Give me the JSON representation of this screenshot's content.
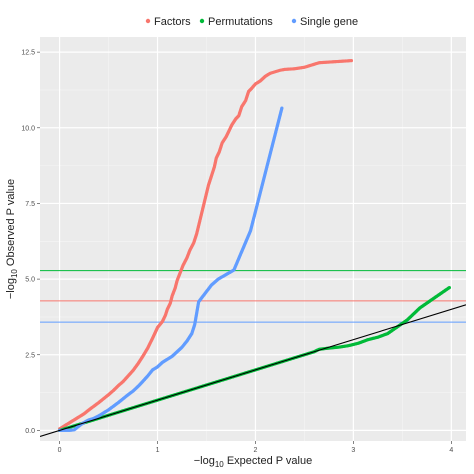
{
  "chart_data": {
    "type": "scatter",
    "title": "",
    "xlabel": "−log10 Expected P value",
    "ylabel": "−log10 Observed P value",
    "xlabel_parts": {
      "pre": "−log",
      "sub": "10",
      "post": " Expected P value"
    },
    "ylabel_parts": {
      "pre": "−log",
      "sub": "10",
      "post": " Observed P value"
    },
    "xlim": [
      -0.2,
      4.15
    ],
    "ylim": [
      -0.35,
      13.0
    ],
    "xticks": [
      0,
      1,
      2,
      3,
      4
    ],
    "xtick_labels": [
      "0",
      "1",
      "2",
      "3",
      "4"
    ],
    "yticks": [
      0.0,
      2.5,
      5.0,
      7.5,
      10.0,
      12.5
    ],
    "ytick_labels": [
      "0.0",
      "2.5",
      "5.0",
      "7.5",
      "10.0",
      "12.5"
    ],
    "grid": true,
    "legend_position": "top",
    "background": "#ebebeb",
    "reference_line": {
      "slope": 1.0,
      "color": "#000000"
    },
    "thresholds": [
      {
        "series": "Permutations",
        "y": 5.28,
        "color": "#00ba38"
      },
      {
        "series": "Factors",
        "y": 4.28,
        "color": "#f8766d"
      },
      {
        "series": "Single gene",
        "y": 3.58,
        "color": "#619cff"
      }
    ],
    "series": [
      {
        "name": "Factors",
        "color": "#f8766d",
        "points": [
          [
            0.0,
            0.05
          ],
          [
            0.05,
            0.15
          ],
          [
            0.1,
            0.25
          ],
          [
            0.15,
            0.35
          ],
          [
            0.2,
            0.45
          ],
          [
            0.25,
            0.55
          ],
          [
            0.3,
            0.68
          ],
          [
            0.35,
            0.8
          ],
          [
            0.4,
            0.92
          ],
          [
            0.45,
            1.05
          ],
          [
            0.5,
            1.18
          ],
          [
            0.55,
            1.32
          ],
          [
            0.6,
            1.48
          ],
          [
            0.65,
            1.62
          ],
          [
            0.7,
            1.8
          ],
          [
            0.75,
            1.98
          ],
          [
            0.8,
            2.2
          ],
          [
            0.85,
            2.45
          ],
          [
            0.9,
            2.72
          ],
          [
            0.95,
            3.05
          ],
          [
            1.0,
            3.4
          ],
          [
            1.05,
            3.6
          ],
          [
            1.08,
            3.8
          ],
          [
            1.1,
            4.0
          ],
          [
            1.13,
            4.2
          ],
          [
            1.15,
            4.45
          ],
          [
            1.18,
            4.7
          ],
          [
            1.2,
            4.95
          ],
          [
            1.23,
            5.2
          ],
          [
            1.26,
            5.45
          ],
          [
            1.3,
            5.7
          ],
          [
            1.33,
            5.95
          ],
          [
            1.37,
            6.2
          ],
          [
            1.4,
            6.5
          ],
          [
            1.43,
            6.9
          ],
          [
            1.46,
            7.3
          ],
          [
            1.49,
            7.7
          ],
          [
            1.52,
            8.1
          ],
          [
            1.55,
            8.4
          ],
          [
            1.58,
            8.7
          ],
          [
            1.6,
            9.0
          ],
          [
            1.63,
            9.2
          ],
          [
            1.66,
            9.5
          ],
          [
            1.7,
            9.7
          ],
          [
            1.73,
            9.9
          ],
          [
            1.76,
            10.1
          ],
          [
            1.8,
            10.3
          ],
          [
            1.83,
            10.4
          ],
          [
            1.86,
            10.7
          ],
          [
            1.9,
            10.9
          ],
          [
            1.93,
            11.2
          ],
          [
            1.96,
            11.3
          ],
          [
            2.0,
            11.45
          ],
          [
            2.05,
            11.55
          ],
          [
            2.1,
            11.7
          ],
          [
            2.15,
            11.8
          ],
          [
            2.2,
            11.85
          ],
          [
            2.25,
            11.9
          ],
          [
            2.3,
            11.93
          ],
          [
            2.4,
            11.95
          ],
          [
            2.5,
            12.0
          ],
          [
            2.65,
            12.15
          ],
          [
            2.98,
            12.22
          ]
        ]
      },
      {
        "name": "Permutations",
        "color": "#00ba38",
        "points": [
          [
            0.0,
            0.0
          ],
          [
            0.1,
            0.1
          ],
          [
            0.2,
            0.2
          ],
          [
            0.3,
            0.3
          ],
          [
            0.4,
            0.4
          ],
          [
            0.5,
            0.5
          ],
          [
            0.6,
            0.6
          ],
          [
            0.7,
            0.7
          ],
          [
            0.8,
            0.8
          ],
          [
            0.9,
            0.9
          ],
          [
            1.0,
            1.0
          ],
          [
            1.1,
            1.1
          ],
          [
            1.2,
            1.2
          ],
          [
            1.3,
            1.3
          ],
          [
            1.4,
            1.4
          ],
          [
            1.5,
            1.5
          ],
          [
            1.6,
            1.6
          ],
          [
            1.7,
            1.7
          ],
          [
            1.8,
            1.8
          ],
          [
            1.9,
            1.9
          ],
          [
            2.0,
            2.0
          ],
          [
            2.1,
            2.1
          ],
          [
            2.2,
            2.2
          ],
          [
            2.3,
            2.3
          ],
          [
            2.4,
            2.4
          ],
          [
            2.5,
            2.5
          ],
          [
            2.6,
            2.6
          ],
          [
            2.65,
            2.68
          ],
          [
            2.75,
            2.72
          ],
          [
            2.85,
            2.75
          ],
          [
            2.95,
            2.8
          ],
          [
            3.05,
            2.88
          ],
          [
            3.15,
            3.0
          ],
          [
            3.25,
            3.08
          ],
          [
            3.35,
            3.2
          ],
          [
            3.55,
            3.65
          ],
          [
            3.68,
            4.05
          ],
          [
            3.98,
            4.72
          ]
        ]
      },
      {
        "name": "Single gene",
        "color": "#619cff",
        "points": [
          [
            0.0,
            0.0
          ],
          [
            0.05,
            0.0
          ],
          [
            0.1,
            0.0
          ],
          [
            0.15,
            0.02
          ],
          [
            0.18,
            0.1
          ],
          [
            0.22,
            0.2
          ],
          [
            0.26,
            0.28
          ],
          [
            0.3,
            0.35
          ],
          [
            0.35,
            0.4
          ],
          [
            0.4,
            0.48
          ],
          [
            0.45,
            0.58
          ],
          [
            0.5,
            0.68
          ],
          [
            0.55,
            0.8
          ],
          [
            0.6,
            0.92
          ],
          [
            0.65,
            1.05
          ],
          [
            0.7,
            1.18
          ],
          [
            0.75,
            1.3
          ],
          [
            0.8,
            1.45
          ],
          [
            0.85,
            1.62
          ],
          [
            0.9,
            1.8
          ],
          [
            0.95,
            2.0
          ],
          [
            1.0,
            2.1
          ],
          [
            1.05,
            2.25
          ],
          [
            1.1,
            2.35
          ],
          [
            1.15,
            2.45
          ],
          [
            1.2,
            2.6
          ],
          [
            1.25,
            2.75
          ],
          [
            1.3,
            2.95
          ],
          [
            1.35,
            3.2
          ],
          [
            1.38,
            3.5
          ],
          [
            1.42,
            4.25
          ],
          [
            1.55,
            4.8
          ],
          [
            1.62,
            5.0
          ],
          [
            1.78,
            5.3
          ],
          [
            1.95,
            6.6
          ],
          [
            2.27,
            10.65
          ]
        ]
      }
    ]
  }
}
